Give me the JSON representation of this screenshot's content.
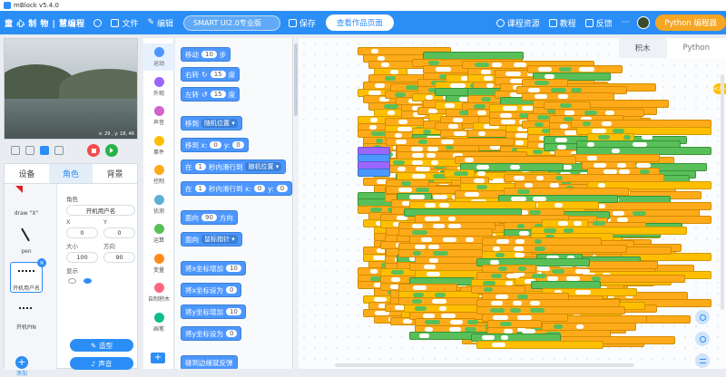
{
  "window": {
    "title": "mBlock v5.4.0"
  },
  "menubar": {
    "items": [
      "文件",
      "编辑"
    ],
    "logo_text": "童 心 制 物 | 慧编程",
    "device": "SMART UI2.0专业版",
    "save": "保存",
    "share": "查看作品页面",
    "right": [
      "课程资源",
      "教程",
      "反馈"
    ],
    "more": "···",
    "python_editor": "Python 编程器"
  },
  "stage": {
    "info": "x: 29 , y: 18, 46"
  },
  "sprite_panel": {
    "tabs": [
      "设备",
      "角色",
      "背景"
    ],
    "sprites": [
      {
        "label": "draw \"X\""
      },
      {
        "label": "pen"
      },
      {
        "label": "开机用户名"
      },
      {
        "label": "开机PIN"
      }
    ],
    "add_label": "添加",
    "props": {
      "role_label": "角色",
      "role_value": "开机用户名",
      "x_label": "X",
      "x_value": "0",
      "y_label": "Y",
      "y_value": "0",
      "size_label": "大小",
      "size_value": "100",
      "direction_label": "方向",
      "direction_value": "90",
      "show_label": "显示"
    },
    "costume_button": "造型",
    "sound_button": "声音"
  },
  "categories": [
    {
      "label": "运动",
      "color": "#4c97ff"
    },
    {
      "label": "外观",
      "color": "#9966ff"
    },
    {
      "label": "声音",
      "color": "#cf63cf"
    },
    {
      "label": "事件",
      "color": "#ffbf00"
    },
    {
      "label": "控制",
      "color": "#ffab19"
    },
    {
      "label": "侦测",
      "color": "#5cb1d6"
    },
    {
      "label": "运算",
      "color": "#59c059"
    },
    {
      "label": "变量",
      "color": "#ff8c1a"
    },
    {
      "label": "自制积木",
      "color": "#ff6680"
    },
    {
      "label": "画笔",
      "color": "#0fbd8c"
    }
  ],
  "palette": {
    "move": {
      "a": "移动",
      "n": "10",
      "b": "步"
    },
    "turn_right": {
      "a": "右转",
      "n": "15",
      "b": "度"
    },
    "turn_left": {
      "a": "左转",
      "n": "15",
      "b": "度"
    },
    "goto": {
      "a": "移到",
      "dd": "随机位置"
    },
    "goto_xy": {
      "a": "移到 x:",
      "x": "0",
      "b": "y:",
      "y": "0"
    },
    "glide": {
      "a": "在",
      "n": "1",
      "b": "秒内滑行到",
      "dd": "随机位置"
    },
    "glide_xy": {
      "a": "在",
      "n": "1",
      "b": "秒内滑行到 x:",
      "x": "0",
      "c": "y:",
      "y": "0"
    },
    "point_dir": {
      "a": "面向",
      "n": "90",
      "b": "方向"
    },
    "point_to": {
      "a": "面向",
      "dd": "鼠标指针"
    },
    "change_x": {
      "a": "将x坐标增加",
      "n": "10"
    },
    "set_x": {
      "a": "将x坐标设为",
      "n": "0"
    },
    "change_y": {
      "a": "将y坐标增加",
      "n": "10"
    },
    "set_y": {
      "a": "将y坐标设为",
      "n": "0"
    },
    "bounce": {
      "a": "碰到边缘就反弹"
    }
  },
  "code_tabs": [
    "积木",
    "Python"
  ]
}
